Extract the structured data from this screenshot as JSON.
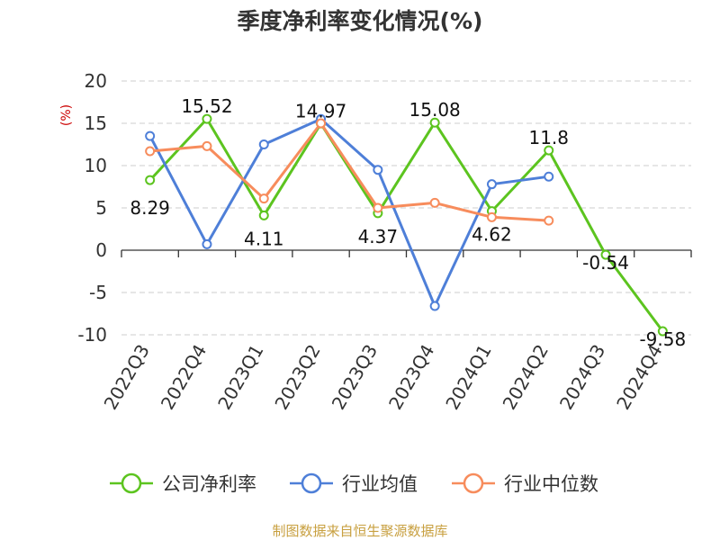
{
  "chart_data": {
    "type": "line",
    "title": "季度净利率变化情况(%)",
    "ylabel": "(%)",
    "xlabel": "",
    "categories": [
      "2022Q3",
      "2022Q4",
      "2023Q1",
      "2023Q2",
      "2023Q3",
      "2023Q4",
      "2024Q1",
      "2024Q2",
      "2024Q3",
      "2024Q4"
    ],
    "ylim": [
      -10,
      20
    ],
    "yticks": [
      20,
      15,
      10,
      5,
      0,
      -5,
      -10
    ],
    "grid": true,
    "legend": "bottom",
    "series": [
      {
        "name": "公司净利率",
        "color": "#5cc41f",
        "values": [
          8.29,
          15.52,
          4.11,
          14.97,
          4.37,
          15.08,
          4.62,
          11.8,
          -0.54,
          -9.58
        ],
        "labels": [
          "8.29",
          "15.52",
          "4.11",
          "14.97",
          "4.37",
          "15.08",
          "4.62",
          "11.8",
          "-0.54",
          "-9.58"
        ]
      },
      {
        "name": "行业均值",
        "color": "#4e7fd8",
        "values": [
          13.5,
          0.7,
          12.5,
          15.5,
          9.5,
          -6.6,
          7.8,
          8.7,
          null,
          null
        ]
      },
      {
        "name": "行业中位数",
        "color": "#f78c5c",
        "values": [
          11.7,
          12.3,
          6.1,
          15.0,
          5.0,
          5.6,
          3.9,
          3.5,
          null,
          null
        ]
      }
    ]
  },
  "source": "制图数据来自恒生聚源数据库"
}
